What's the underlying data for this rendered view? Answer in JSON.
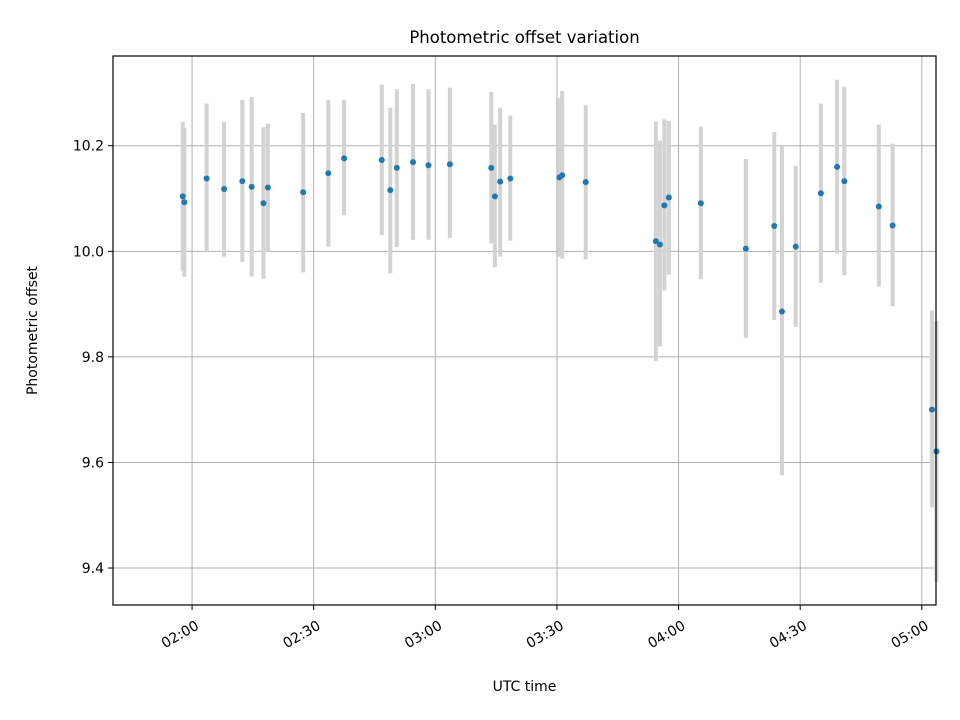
{
  "chart_data": {
    "type": "scatter",
    "title": "Photometric offset variation",
    "xlabel": "UTC time",
    "ylabel": "Photometric offset",
    "xlim_minutes": [
      100.5,
      303.5
    ],
    "ylim": [
      9.33,
      10.37
    ],
    "grid": true,
    "legend": "none",
    "x_ticks": [
      {
        "minutes": 120,
        "label": "02:00"
      },
      {
        "minutes": 150,
        "label": "02:30"
      },
      {
        "minutes": 180,
        "label": "03:00"
      },
      {
        "minutes": 210,
        "label": "03:30"
      },
      {
        "minutes": 240,
        "label": "04:00"
      },
      {
        "minutes": 270,
        "label": "04:30"
      },
      {
        "minutes": 300,
        "label": "05:00"
      }
    ],
    "y_ticks": [
      {
        "value": 9.4,
        "label": "9.4"
      },
      {
        "value": 9.6,
        "label": "9.6"
      },
      {
        "value": 9.8,
        "label": "9.8"
      },
      {
        "value": 10.0,
        "label": "10.0"
      },
      {
        "value": 10.2,
        "label": "10.2"
      }
    ],
    "colors": {
      "point": "#1f77b4",
      "errorbar": "#d3d3d3",
      "grid": "#b0b0b0",
      "axes": "#000000"
    },
    "series": [
      {
        "name": "offset",
        "points": [
          {
            "t": 117.7,
            "y": 10.104,
            "lo": 9.962,
            "hi": 10.245
          },
          {
            "t": 118.1,
            "y": 10.093,
            "lo": 9.952,
            "hi": 10.234
          },
          {
            "t": 123.6,
            "y": 10.138,
            "lo": 9.998,
            "hi": 10.28
          },
          {
            "t": 127.9,
            "y": 10.118,
            "lo": 9.99,
            "hi": 10.245
          },
          {
            "t": 132.4,
            "y": 10.133,
            "lo": 9.98,
            "hi": 10.287
          },
          {
            "t": 134.7,
            "y": 10.122,
            "lo": 9.952,
            "hi": 10.292
          },
          {
            "t": 137.6,
            "y": 10.091,
            "lo": 9.948,
            "hi": 10.235
          },
          {
            "t": 138.7,
            "y": 10.121,
            "lo": 10.0,
            "hi": 10.242
          },
          {
            "t": 147.4,
            "y": 10.112,
            "lo": 9.96,
            "hi": 10.262
          },
          {
            "t": 153.6,
            "y": 10.148,
            "lo": 10.009,
            "hi": 10.287
          },
          {
            "t": 157.5,
            "y": 10.176,
            "lo": 10.068,
            "hi": 10.287
          },
          {
            "t": 166.8,
            "y": 10.173,
            "lo": 10.031,
            "hi": 10.316
          },
          {
            "t": 168.9,
            "y": 10.116,
            "lo": 9.958,
            "hi": 10.272
          },
          {
            "t": 170.5,
            "y": 10.158,
            "lo": 10.008,
            "hi": 10.307
          },
          {
            "t": 174.5,
            "y": 10.169,
            "lo": 10.022,
            "hi": 10.317
          },
          {
            "t": 178.3,
            "y": 10.163,
            "lo": 10.022,
            "hi": 10.307
          },
          {
            "t": 183.6,
            "y": 10.165,
            "lo": 10.025,
            "hi": 10.31
          },
          {
            "t": 193.8,
            "y": 10.158,
            "lo": 10.015,
            "hi": 10.302
          },
          {
            "t": 194.7,
            "y": 10.104,
            "lo": 9.97,
            "hi": 10.24
          },
          {
            "t": 196.0,
            "y": 10.132,
            "lo": 9.99,
            "hi": 10.272
          },
          {
            "t": 198.5,
            "y": 10.138,
            "lo": 10.02,
            "hi": 10.257
          },
          {
            "t": 210.6,
            "y": 10.14,
            "lo": 9.99,
            "hi": 10.29
          },
          {
            "t": 211.3,
            "y": 10.144,
            "lo": 9.986,
            "hi": 10.304
          },
          {
            "t": 217.1,
            "y": 10.131,
            "lo": 9.985,
            "hi": 10.277
          },
          {
            "t": 234.4,
            "y": 10.019,
            "lo": 9.792,
            "hi": 10.246
          },
          {
            "t": 235.4,
            "y": 10.013,
            "lo": 9.82,
            "hi": 10.21
          },
          {
            "t": 236.5,
            "y": 10.087,
            "lo": 9.926,
            "hi": 10.25
          },
          {
            "t": 237.6,
            "y": 10.102,
            "lo": 9.956,
            "hi": 10.247
          },
          {
            "t": 245.5,
            "y": 10.091,
            "lo": 9.947,
            "hi": 10.236
          },
          {
            "t": 256.6,
            "y": 10.005,
            "lo": 9.836,
            "hi": 10.175
          },
          {
            "t": 263.6,
            "y": 10.048,
            "lo": 9.87,
            "hi": 10.226
          },
          {
            "t": 265.5,
            "y": 9.886,
            "lo": 9.576,
            "hi": 10.2
          },
          {
            "t": 268.9,
            "y": 10.009,
            "lo": 9.857,
            "hi": 10.162
          },
          {
            "t": 275.1,
            "y": 10.11,
            "lo": 9.94,
            "hi": 10.28
          },
          {
            "t": 279.1,
            "y": 10.16,
            "lo": 9.996,
            "hi": 10.325
          },
          {
            "t": 280.9,
            "y": 10.133,
            "lo": 9.955,
            "hi": 10.312
          },
          {
            "t": 289.4,
            "y": 10.085,
            "lo": 9.933,
            "hi": 10.24
          },
          {
            "t": 292.8,
            "y": 10.049,
            "lo": 9.896,
            "hi": 10.204
          },
          {
            "t": 302.5,
            "y": 9.7,
            "lo": 9.515,
            "hi": 9.888
          },
          {
            "t": 303.6,
            "y": 9.621,
            "lo": 9.374,
            "hi": 9.868
          }
        ]
      }
    ]
  }
}
